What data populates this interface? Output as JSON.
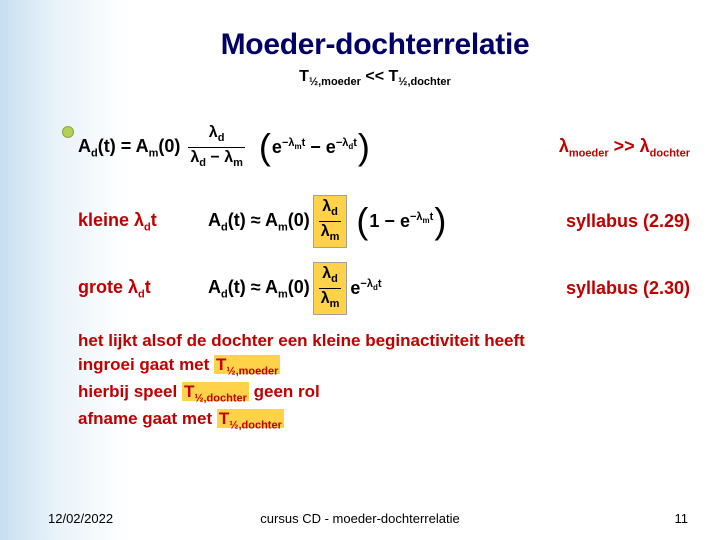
{
  "colors": {
    "title": "#000066",
    "text_black": "#000000",
    "text_red": "#c00000",
    "highlight_bg": "#ffd24a",
    "bullet": "#b5d059",
    "bullet_border": "#87a63c"
  },
  "title": "Moeder-dochterrelatie",
  "subtitle_lhs_sym": "T",
  "subtitle_lhs_sub": "½,moeder",
  "subtitle_op": " << ",
  "subtitle_rhs_sym": "T",
  "subtitle_rhs_sub": "½,dochter",
  "eq1": {
    "lhs_A": "A",
    "lhs_dsub": "d",
    "lhs_arg": "(t) = ",
    "rhs_A": "A",
    "rhs_msub": "m",
    "rhs_zero": "(0) ",
    "frac_num_label": "λ",
    "frac_num_sub": "d",
    "frac_den_left_label": "λ",
    "frac_den_left_sub": "d",
    "frac_den_minus": " − ",
    "frac_den_right_label": "λ",
    "frac_den_right_sub": "m",
    "exp1_e": "e",
    "exp1_pow_pre": "−λ",
    "exp1_pow_sub": "m",
    "exp1_pow_t": "t",
    "minus": " − ",
    "exp2_e": "e",
    "exp2_pow_pre": "−λ",
    "exp2_pow_sub": "d",
    "exp2_pow_t": "t",
    "rel_lhs_label": "λ",
    "rel_lhs_sub": "moeder",
    "rel_op": " >> ",
    "rel_rhs_label": "λ",
    "rel_rhs_sub": "dochter"
  },
  "eq2": {
    "left_pre": "kleine λ",
    "left_sub": "d",
    "left_post": "t",
    "lhs_A": "A",
    "lhs_dsub": "d",
    "lhs_arg": "(t) ≈ ",
    "rhs_A": "A",
    "rhs_msub": "m",
    "rhs_zero": "(0) ",
    "frac_num_label": "λ",
    "frac_num_sub": "d",
    "frac_den_label": "λ",
    "frac_den_sub": "m",
    "one_minus": "1 − ",
    "exp_e": "e",
    "exp_pow_pre": "−λ",
    "exp_pow_sub": "m",
    "exp_pow_t": "t",
    "ref": "syllabus (2.29)"
  },
  "eq3": {
    "left_pre": "grote λ",
    "left_sub": "d",
    "left_post": "t",
    "lhs_A": "A",
    "lhs_dsub": "d",
    "lhs_arg": "(t) ≈ ",
    "rhs_A": "A",
    "rhs_msub": "m",
    "rhs_zero": "(0) ",
    "frac_num_label": "λ",
    "frac_num_sub": "d",
    "frac_den_label": "λ",
    "frac_den_sub": "m",
    "exp_e": "e",
    "exp_pow_pre": "−λ",
    "exp_pow_sub": "d",
    "exp_pow_t": "t",
    "ref": "syllabus (2.30)"
  },
  "summary": {
    "l1": "het lijkt alsof de dochter een kleine beginactiviteit heeft",
    "l2_pre": "ingroei gaat met ",
    "l2_sym": "T",
    "l2_sub": "½,moeder",
    "l3_pre": "hierbij speel ",
    "l3_sym": "T",
    "l3_sub": "½,dochter",
    "l3_post": " geen rol",
    "l4_pre": "afname gaat met ",
    "l4_sym": "T",
    "l4_sub": "½,dochter"
  },
  "footer": {
    "date": "12/02/2022",
    "center": "cursus CD - moeder-dochterrelatie",
    "page": "11"
  }
}
